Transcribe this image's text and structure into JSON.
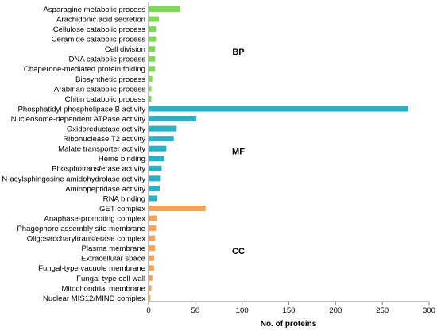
{
  "chart_data": {
    "type": "bar",
    "orientation": "horizontal",
    "xlabel": "No. of proteins",
    "ylabel": "",
    "xlim": [
      0,
      300
    ],
    "xticks": [
      "0",
      "50",
      "100",
      "150",
      "200",
      "250",
      "300"
    ],
    "grid": false,
    "groups": [
      {
        "name": "BP",
        "color": "#7ed957",
        "categories": [
          "Asparagine metabolic process",
          "Arachidonic acid secretion",
          "Cellulose catabolic process",
          "Ceramide catabolic process",
          "Cell division",
          "DNA catabolic process",
          "Chaperone-mediated protein folding",
          "Biosynthetic process",
          "Arabinan catabolic process",
          "Chitin catabolic process"
        ],
        "values": [
          34,
          11,
          8,
          8,
          7,
          7,
          7,
          4,
          3,
          3
        ]
      },
      {
        "name": "MF",
        "color": "#28b1c6",
        "categories": [
          "Phosphatidyl phospholipase B activity",
          "Nucleosome-dependent ATPase activity",
          "Oxidoreductase activity",
          "Ribonuclease T2 activity",
          "Malate  transporter activity",
          "Heme binding",
          "Phosphotransferase activity",
          "N-acylsphingosine amidohydrolase activity",
          "Aminopeptidase activity",
          "RNA binding"
        ],
        "values": [
          278,
          51,
          30,
          27,
          19,
          17,
          14,
          13,
          12,
          9
        ]
      },
      {
        "name": "CC",
        "color": "#f4a25a",
        "categories": [
          "GET complex",
          "Anaphase-promoting complex",
          "Phagophore assembly site membrane",
          "Oligosaccharyltransferase complex",
          "Plasma membrane",
          "Extracellular space",
          "Fungal-type vacuole membrane",
          "Fungal-type cell wall",
          "Mitochondrial membrane",
          "Nuclear MIS12/MIND complex"
        ],
        "values": [
          61,
          9,
          8,
          7,
          7,
          6,
          6,
          4,
          3,
          2
        ]
      }
    ]
  }
}
